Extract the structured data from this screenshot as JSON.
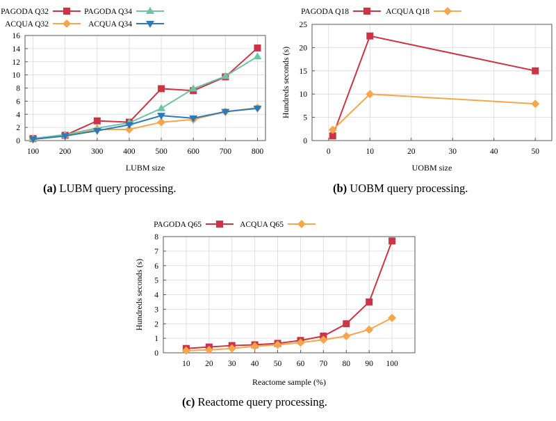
{
  "colors": {
    "pagoda": "#cc3344",
    "acqua": "#f5a54a",
    "pagoda34": "#6cc4a4",
    "acqua34": "#2e7ab8"
  },
  "chart_data": [
    {
      "id": "lubm",
      "type": "line",
      "caption_tag": "(a)",
      "caption_text": "LUBM query processing.",
      "xlabel": "LUBM size",
      "ylabel": "",
      "x": [
        100,
        200,
        300,
        400,
        500,
        600,
        700,
        800
      ],
      "xticks": [
        100,
        200,
        300,
        400,
        500,
        600,
        700,
        800
      ],
      "xlim": [
        75,
        825
      ],
      "ylim": [
        0,
        16
      ],
      "yticks": [
        0,
        2,
        4,
        6,
        8,
        10,
        12,
        14,
        16
      ],
      "grid": true,
      "legend_position": "top",
      "series": [
        {
          "name": "PAGODA Q32",
          "color": "#cc3344",
          "marker": "square",
          "values": [
            0.3,
            0.8,
            3.0,
            2.8,
            7.9,
            7.6,
            9.7,
            14.1
          ]
        },
        {
          "name": "PAGODA Q34",
          "color": "#6cc4a4",
          "marker": "triangle-up",
          "values": [
            0.3,
            0.9,
            1.9,
            2.7,
            4.9,
            7.9,
            9.8,
            12.8
          ]
        },
        {
          "name": "ACQUA Q32",
          "color": "#f5a54a",
          "marker": "diamond",
          "values": [
            0.2,
            0.7,
            1.7,
            1.7,
            2.8,
            3.2,
            4.4,
            5.0
          ]
        },
        {
          "name": "ACQUA Q34",
          "color": "#2e7ab8",
          "marker": "triangle-down",
          "values": [
            0.2,
            0.7,
            1.5,
            2.4,
            3.8,
            3.4,
            4.4,
            4.9
          ]
        }
      ]
    },
    {
      "id": "uobm",
      "type": "line",
      "caption_tag": "(b)",
      "caption_text": "UOBM query processing.",
      "xlabel": "UOBM size",
      "ylabel": "Hundreds seconds (s)",
      "x": [
        1,
        10,
        50
      ],
      "xticks": [
        0,
        10,
        20,
        30,
        40,
        50
      ],
      "xlim": [
        -4,
        54
      ],
      "ylim": [
        0,
        25
      ],
      "yticks": [
        0,
        5,
        10,
        15,
        20,
        25
      ],
      "grid": true,
      "legend_position": "top",
      "series": [
        {
          "name": "PAGODA Q18",
          "color": "#cc3344",
          "marker": "square",
          "values": [
            1.0,
            22.5,
            15.0
          ]
        },
        {
          "name": "ACQUA Q18",
          "color": "#f5a54a",
          "marker": "diamond",
          "values": [
            2.3,
            10.0,
            7.9
          ]
        }
      ]
    },
    {
      "id": "reactome",
      "type": "line",
      "caption_tag": "(c)",
      "caption_text": "Reactome query processing.",
      "xlabel": "Reactome sample (%)",
      "ylabel": "Hundreds seconds (s)",
      "x": [
        10,
        20,
        30,
        40,
        50,
        60,
        70,
        80,
        90,
        100
      ],
      "xticks": [
        10,
        20,
        30,
        40,
        50,
        60,
        70,
        80,
        90,
        100
      ],
      "xlim": [
        0,
        110
      ],
      "ylim": [
        0,
        8
      ],
      "yticks": [
        0,
        1,
        2,
        3,
        4,
        5,
        6,
        7,
        8
      ],
      "grid": true,
      "legend_position": "top",
      "series": [
        {
          "name": "PAGODA Q65",
          "color": "#cc3344",
          "marker": "square",
          "values": [
            0.3,
            0.4,
            0.5,
            0.55,
            0.65,
            0.85,
            1.15,
            2.0,
            3.5,
            7.7
          ]
        },
        {
          "name": "ACQUA Q65",
          "color": "#f5a54a",
          "marker": "diamond",
          "values": [
            0.15,
            0.2,
            0.3,
            0.45,
            0.55,
            0.7,
            0.9,
            1.15,
            1.6,
            2.4
          ]
        }
      ]
    }
  ]
}
